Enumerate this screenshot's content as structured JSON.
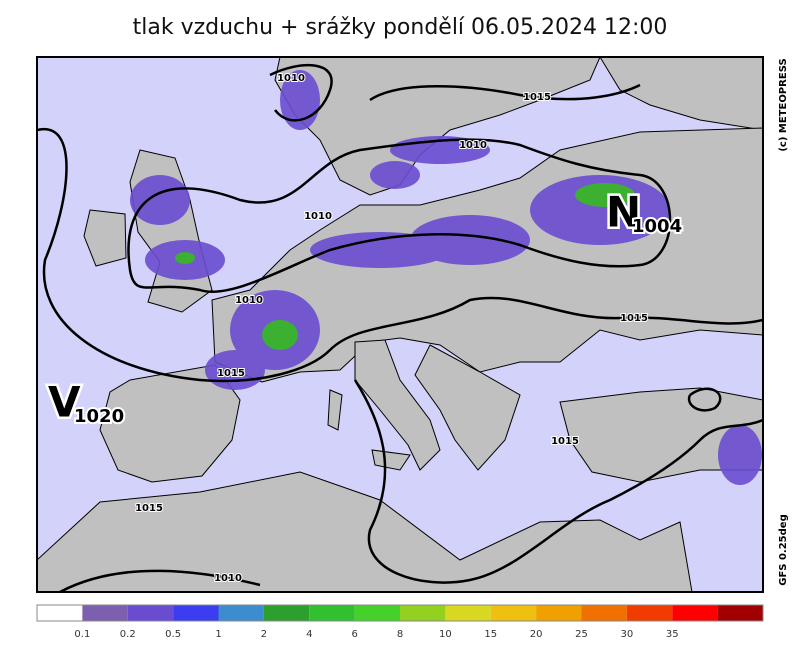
{
  "title": "tlak vzduchu + srážky pondělí 06.05.2024 12:00",
  "copyright": "(c) METEOPRESS",
  "model": "GFS 0.25deg",
  "isobar_labels": [
    1010,
    1015,
    1010,
    1010,
    1010,
    1015,
    1015,
    1015,
    1015,
    1010
  ],
  "pressure_centers": [
    {
      "letter": "V",
      "value": 1020
    },
    {
      "letter": "N",
      "value": 1004
    }
  ],
  "legend": {
    "colors": [
      "#ffffff",
      "#7d5faf",
      "#6a4cd0",
      "#3c3cf0",
      "#3c8cd0",
      "#2ca02c",
      "#30c030",
      "#44d22a",
      "#94d020",
      "#d8d820",
      "#f0c010",
      "#f0a000",
      "#f07000",
      "#f03c00",
      "#ff0000",
      "#a00000"
    ],
    "labels": [
      0.1,
      0.2,
      0.5,
      1,
      2,
      4,
      6,
      8,
      10,
      15,
      20,
      25,
      30,
      35
    ]
  }
}
